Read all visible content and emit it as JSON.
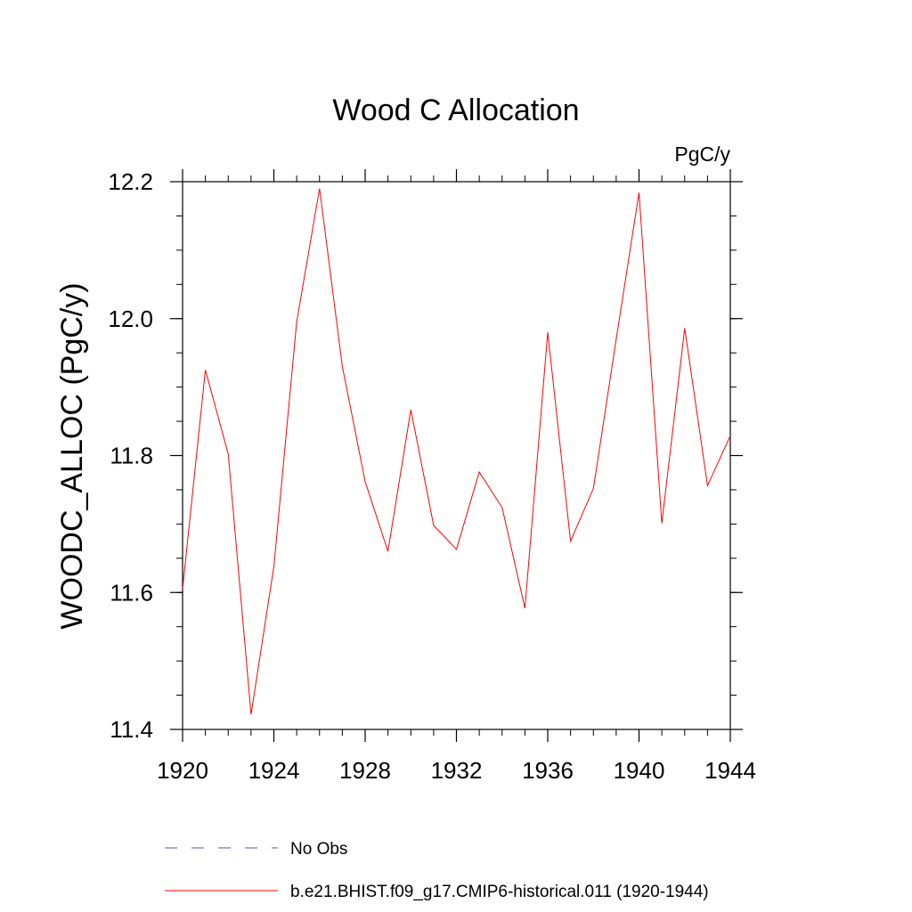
{
  "chart_data": {
    "type": "line",
    "title": "Wood C Allocation",
    "units": "PgC/y",
    "ylabel": "WOODC_ALLOC  (PgC/y)",
    "xlabel": "",
    "xlim": [
      1920,
      1944
    ],
    "ylim": [
      11.4,
      12.2
    ],
    "xticks": [
      "1920",
      "1924",
      "1928",
      "1932",
      "1936",
      "1940",
      "1944"
    ],
    "yticks": [
      "11.4",
      "11.6",
      "11.8",
      "12.0",
      "12.2"
    ],
    "grid": false,
    "legend_position": "bottom",
    "series": [
      {
        "name": "b.e21.BHIST.f09_g17.CMIP6-historical.011 (1920-1944)",
        "color": "#ff0000",
        "style": "solid",
        "x": [
          1920,
          1921,
          1922,
          1923,
          1924,
          1925,
          1926,
          1927,
          1928,
          1929,
          1930,
          1931,
          1932,
          1933,
          1934,
          1935,
          1936,
          1937,
          1938,
          1939,
          1940,
          1941,
          1942,
          1943,
          1944
        ],
        "y": [
          11.605,
          11.925,
          11.802,
          11.422,
          11.638,
          11.995,
          12.19,
          11.93,
          11.762,
          11.66,
          11.867,
          11.698,
          11.663,
          11.776,
          11.724,
          11.577,
          11.98,
          11.675,
          11.752,
          11.97,
          12.184,
          11.701,
          11.986,
          11.756,
          11.829
        ]
      }
    ],
    "legend": [
      {
        "label": "No Obs",
        "color": "#5555aa",
        "style": "dashed"
      },
      {
        "label": "b.e21.BHIST.f09_g17.CMIP6-historical.011 (1920-1944)",
        "color": "#ff0000",
        "style": "solid"
      }
    ]
  }
}
